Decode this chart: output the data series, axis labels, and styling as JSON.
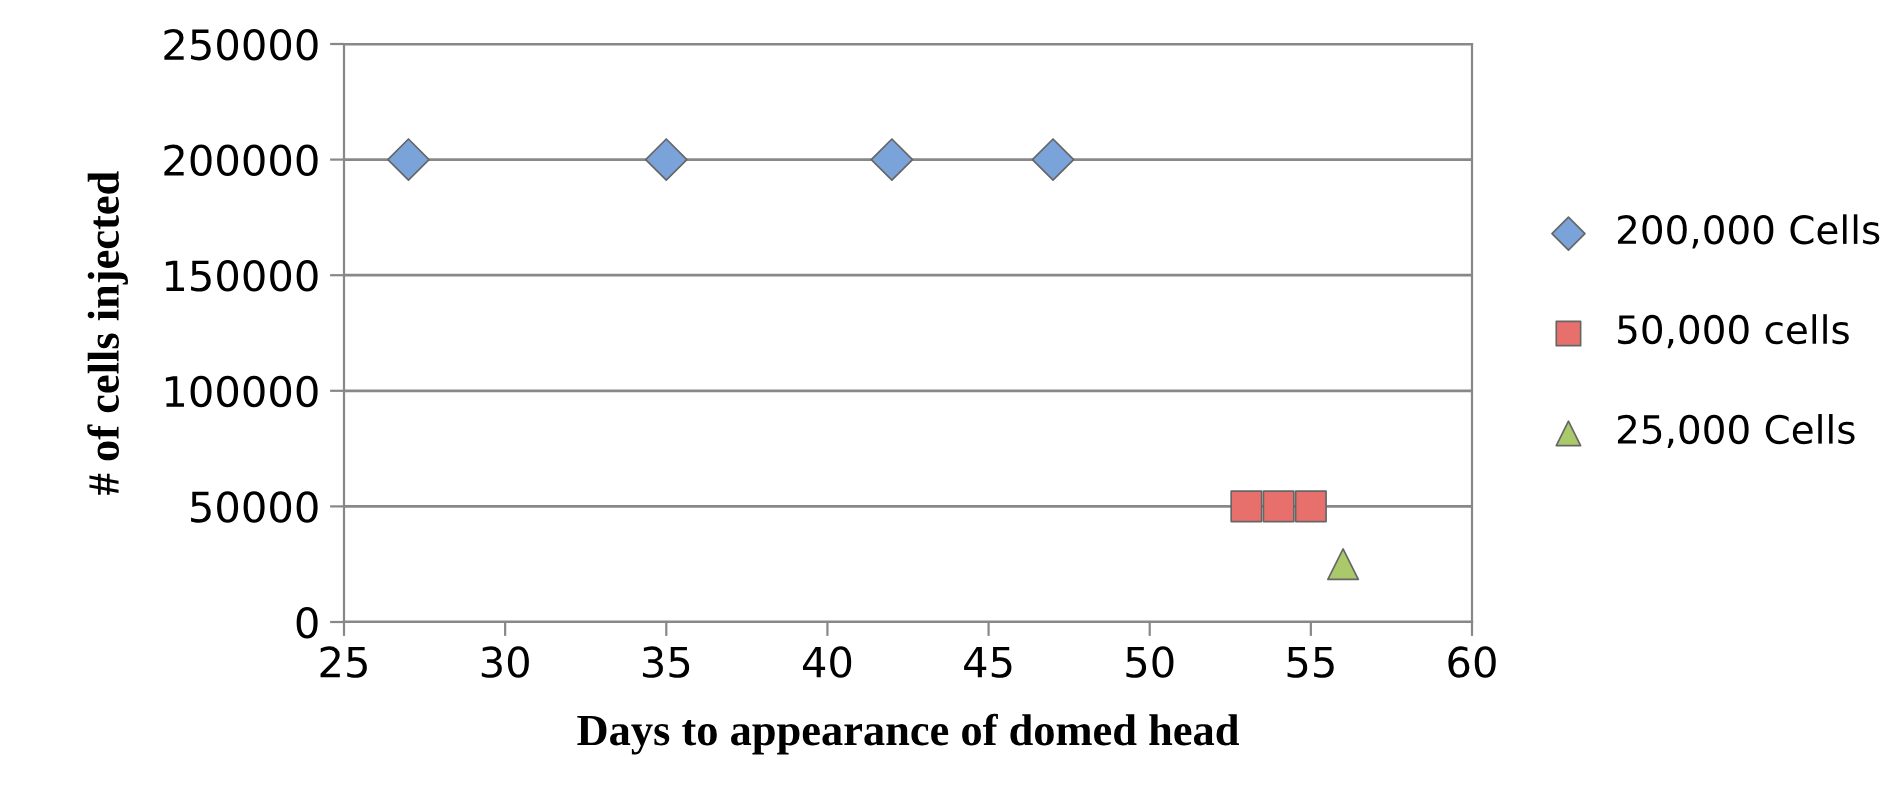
{
  "chart_data": {
    "type": "scatter",
    "xlabel": "Days to appearance of domed head",
    "ylabel": "# of cells injected",
    "xlim": [
      25,
      60
    ],
    "xticks": [
      25,
      30,
      35,
      40,
      45,
      50,
      55,
      60
    ],
    "ylim": [
      0,
      250000
    ],
    "yticks": [
      0,
      50000,
      100000,
      150000,
      200000,
      250000
    ],
    "grid": "y",
    "legend": "right",
    "series": [
      {
        "name": "200,000 Cells",
        "color": "#7aa3d9",
        "marker": "diamond",
        "x": [
          27,
          35,
          42,
          47
        ],
        "values": [
          200000,
          200000,
          200000,
          200000
        ]
      },
      {
        "name": "50,000 cells",
        "color": "#e8706c",
        "marker": "square",
        "x": [
          53,
          54,
          55
        ],
        "values": [
          50000,
          50000,
          50000
        ]
      },
      {
        "name": "25,000 Cells",
        "color": "#a9c96a",
        "marker": "triangle",
        "x": [
          56
        ],
        "values": [
          25000
        ]
      }
    ]
  }
}
